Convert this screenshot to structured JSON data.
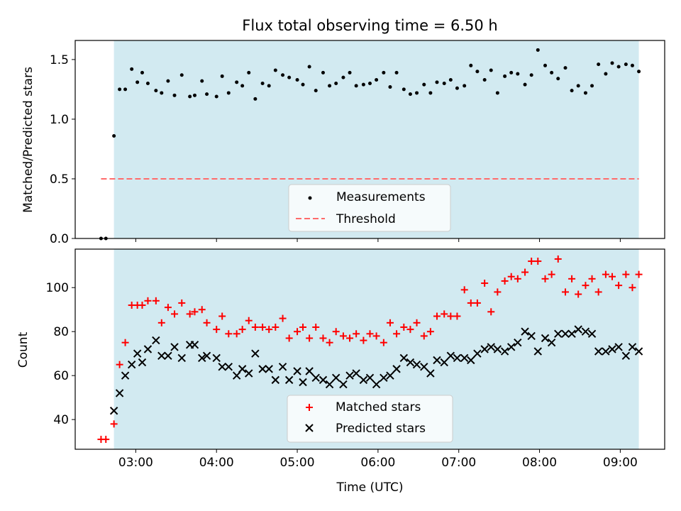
{
  "figure": {
    "title": "Flux total observing time = 6.50 h",
    "xlabel": "Time (UTC)",
    "x_tick_labels": [
      "03:00",
      "04:00",
      "05:00",
      "06:00",
      "07:00",
      "08:00",
      "09:00"
    ]
  },
  "colors": {
    "shade": "#add8e6",
    "measurements": "#000000",
    "threshold": "#ff6b6b",
    "matched": "#ff0000",
    "predicted": "#000000"
  },
  "chart_data": [
    {
      "type": "scatter",
      "ylabel": "Matched/Predicted stars",
      "x_unit": "hours UTC",
      "xlim": [
        2.25,
        9.55
      ],
      "ylim": [
        0,
        1.66
      ],
      "y_ticks": [
        0.0,
        0.5,
        1.0,
        1.5
      ],
      "y_tick_labels": [
        "0.0",
        "0.5",
        "1.0",
        "1.5"
      ],
      "observing_window": [
        2.73,
        9.23
      ],
      "legend_position": "lower-center",
      "threshold": {
        "name": "Threshold",
        "value": 0.5,
        "x_range": [
          2.57,
          9.23
        ]
      },
      "series": [
        {
          "name": "Measurements",
          "x": [
            2.57,
            2.63,
            2.73,
            2.8,
            2.87,
            2.95,
            3.02,
            3.08,
            3.15,
            3.25,
            3.32,
            3.4,
            3.48,
            3.57,
            3.67,
            3.73,
            3.82,
            3.88,
            4.0,
            4.07,
            4.15,
            4.25,
            4.32,
            4.4,
            4.48,
            4.57,
            4.65,
            4.73,
            4.82,
            4.9,
            5.0,
            5.07,
            5.15,
            5.23,
            5.32,
            5.4,
            5.48,
            5.57,
            5.65,
            5.73,
            5.82,
            5.9,
            5.98,
            6.07,
            6.15,
            6.23,
            6.32,
            6.4,
            6.48,
            6.57,
            6.65,
            6.73,
            6.82,
            6.9,
            6.98,
            7.07,
            7.15,
            7.23,
            7.32,
            7.4,
            7.48,
            7.57,
            7.65,
            7.73,
            7.82,
            7.9,
            7.98,
            8.07,
            8.15,
            8.23,
            8.32,
            8.4,
            8.48,
            8.57,
            8.65,
            8.73,
            8.82,
            8.9,
            8.98,
            9.07,
            9.15,
            9.23
          ],
          "y": [
            0.0,
            0.0,
            0.86,
            1.25,
            1.25,
            1.42,
            1.31,
            1.39,
            1.3,
            1.24,
            1.22,
            1.32,
            1.2,
            1.37,
            1.19,
            1.2,
            1.32,
            1.21,
            1.19,
            1.36,
            1.22,
            1.31,
            1.28,
            1.39,
            1.17,
            1.3,
            1.28,
            1.41,
            1.37,
            1.35,
            1.33,
            1.29,
            1.44,
            1.24,
            1.39,
            1.28,
            1.3,
            1.35,
            1.39,
            1.28,
            1.29,
            1.3,
            1.33,
            1.39,
            1.27,
            1.39,
            1.25,
            1.21,
            1.22,
            1.29,
            1.22,
            1.31,
            1.3,
            1.33,
            1.26,
            1.28,
            1.45,
            1.4,
            1.33,
            1.41,
            1.22,
            1.36,
            1.39,
            1.38,
            1.29,
            1.37,
            1.58,
            1.45,
            1.39,
            1.34,
            1.43,
            1.24,
            1.28,
            1.22,
            1.28,
            1.46,
            1.38,
            1.47,
            1.44,
            1.46,
            1.45,
            1.4
          ]
        }
      ]
    },
    {
      "type": "scatter",
      "ylabel": "Count",
      "x_unit": "hours UTC",
      "xlim": [
        2.25,
        9.55
      ],
      "ylim": [
        26.5,
        117.5
      ],
      "y_ticks": [
        40,
        60,
        80,
        100
      ],
      "y_tick_labels": [
        "40",
        "60",
        "80",
        "100"
      ],
      "observing_window": [
        2.73,
        9.23
      ],
      "legend_position": "lower-center",
      "series": [
        {
          "name": "Matched stars",
          "marker": "plus",
          "x": [
            2.57,
            2.63,
            2.73,
            2.8,
            2.87,
            2.95,
            3.02,
            3.08,
            3.15,
            3.25,
            3.32,
            3.4,
            3.48,
            3.57,
            3.67,
            3.73,
            3.82,
            3.88,
            4.0,
            4.07,
            4.15,
            4.25,
            4.32,
            4.4,
            4.48,
            4.57,
            4.65,
            4.73,
            4.82,
            4.9,
            5.0,
            5.07,
            5.15,
            5.23,
            5.32,
            5.4,
            5.48,
            5.57,
            5.65,
            5.73,
            5.82,
            5.9,
            5.98,
            6.07,
            6.15,
            6.23,
            6.32,
            6.4,
            6.48,
            6.57,
            6.65,
            6.73,
            6.82,
            6.9,
            6.98,
            7.07,
            7.15,
            7.23,
            7.32,
            7.4,
            7.48,
            7.57,
            7.65,
            7.73,
            7.82,
            7.9,
            7.98,
            8.07,
            8.15,
            8.23,
            8.32,
            8.4,
            8.48,
            8.57,
            8.65,
            8.73,
            8.82,
            8.9,
            8.98,
            9.07,
            9.15,
            9.23
          ],
          "y": [
            31,
            31,
            38,
            65,
            75,
            92,
            92,
            92,
            94,
            94,
            84,
            91,
            88,
            93,
            88,
            89,
            90,
            84,
            81,
            87,
            79,
            79,
            81,
            85,
            82,
            82,
            81,
            82,
            86,
            77,
            80,
            82,
            77,
            82,
            77,
            75,
            80,
            78,
            77,
            79,
            76,
            79,
            78,
            75,
            84,
            79,
            82,
            81,
            84,
            78,
            80,
            87,
            88,
            87,
            87,
            99,
            93,
            93,
            102,
            89,
            98,
            103,
            105,
            104,
            107,
            112,
            112,
            104,
            106,
            113,
            98,
            104,
            97,
            101,
            104,
            98,
            106,
            105,
            101,
            106,
            100,
            106
          ]
        },
        {
          "name": "Predicted stars",
          "marker": "x",
          "x": [
            2.73,
            2.8,
            2.87,
            2.95,
            3.02,
            3.08,
            3.15,
            3.25,
            3.32,
            3.4,
            3.48,
            3.57,
            3.67,
            3.73,
            3.82,
            3.88,
            4.0,
            4.07,
            4.15,
            4.25,
            4.32,
            4.4,
            4.48,
            4.57,
            4.65,
            4.73,
            4.82,
            4.9,
            5.0,
            5.07,
            5.15,
            5.23,
            5.32,
            5.4,
            5.48,
            5.57,
            5.65,
            5.73,
            5.82,
            5.9,
            5.98,
            6.07,
            6.15,
            6.23,
            6.32,
            6.4,
            6.48,
            6.57,
            6.65,
            6.73,
            6.82,
            6.9,
            6.98,
            7.07,
            7.15,
            7.23,
            7.32,
            7.4,
            7.48,
            7.57,
            7.65,
            7.73,
            7.82,
            7.9,
            7.98,
            8.07,
            8.15,
            8.23,
            8.32,
            8.4,
            8.48,
            8.57,
            8.65,
            8.73,
            8.82,
            8.9,
            8.98,
            9.07,
            9.15,
            9.23
          ],
          "y": [
            44,
            52,
            60,
            65,
            70,
            66,
            72,
            76,
            69,
            69,
            73,
            68,
            74,
            74,
            68,
            69,
            68,
            64,
            64,
            60,
            63,
            61,
            70,
            63,
            63,
            58,
            64,
            58,
            62,
            57,
            62,
            59,
            58,
            56,
            59,
            56,
            60,
            61,
            58,
            59,
            56,
            59,
            60,
            63,
            68,
            66,
            65,
            64,
            61,
            67,
            66,
            69,
            68,
            68,
            67,
            70,
            72,
            73,
            72,
            71,
            73,
            75,
            80,
            78,
            71,
            77,
            75,
            79,
            79,
            79,
            81,
            80,
            79,
            71,
            71,
            72,
            73,
            69,
            73,
            71
          ]
        }
      ]
    }
  ]
}
